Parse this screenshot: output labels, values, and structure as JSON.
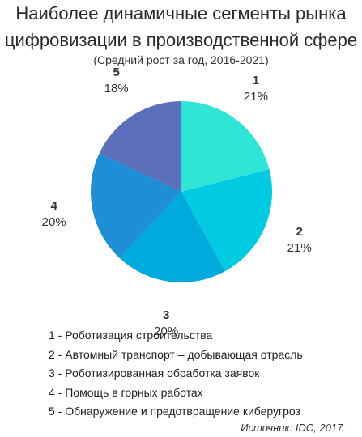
{
  "chart_data": {
    "type": "pie",
    "title_line1": "Наиболее динамичные сегменты рынка",
    "title_line2": "цифровизации в производственной сфере",
    "subtitle": "(Средний рост за год, 2016-2021)",
    "slices": [
      {
        "id": "1",
        "value": 21,
        "value_label": "21%",
        "color": "#2fe6d6",
        "legend": "1 - Роботизация строительства"
      },
      {
        "id": "2",
        "value": 21,
        "value_label": "21%",
        "color": "#00cbe2",
        "legend": "2 - Автомный транспорт – добывающая отрасль"
      },
      {
        "id": "3",
        "value": 20,
        "value_label": "20%",
        "color": "#00aadd",
        "legend": "3 - Роботизированная обработка заявок"
      },
      {
        "id": "4",
        "value": 20,
        "value_label": "20%",
        "color": "#1e8ed6",
        "legend": "4 - Помощь в горных работах"
      },
      {
        "id": "5",
        "value": 18,
        "value_label": "18%",
        "color": "#5c6fbb",
        "legend": "5 - Обнаружение и предотвращение киберугроз"
      }
    ],
    "legend_placement": "bottom",
    "source": "Источник: IDC, 2017."
  }
}
